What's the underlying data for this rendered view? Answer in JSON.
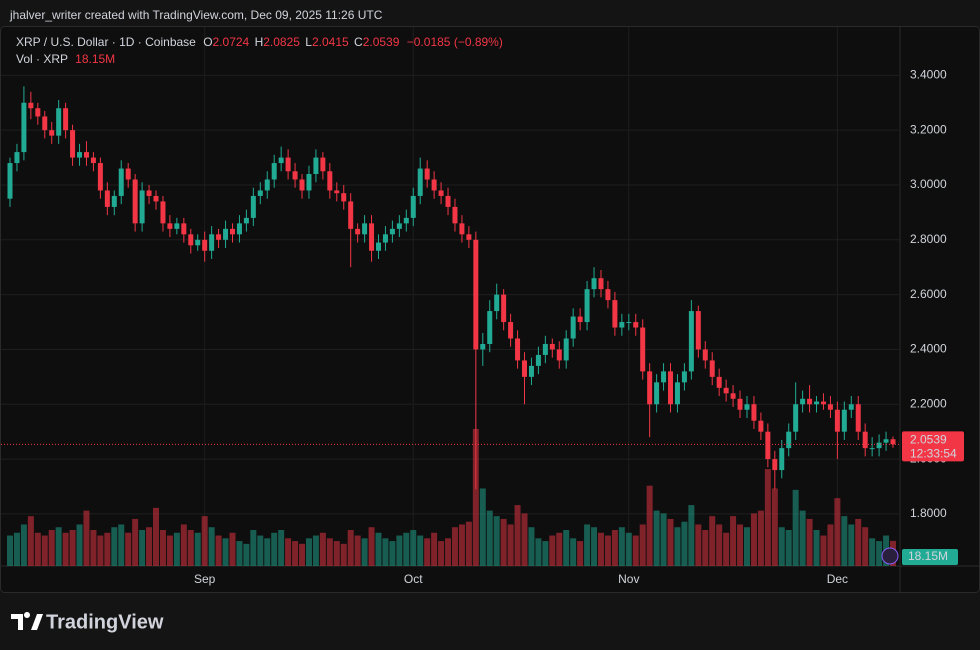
{
  "attribution": "jhalver_writer created with TradingView.com, Dec 09, 2025 11:26 UTC",
  "brand": "TradingView",
  "chart_data": {
    "type": "candlestick",
    "title": "XRP / U.S. Dollar · 1D · Coinbase",
    "ohlc_letters": [
      "O",
      "H",
      "L",
      "C"
    ],
    "change": "−0.0185",
    "change_percent": "(−0.89%)",
    "countdown": "12:33:54",
    "up_color": "#22ab94",
    "down_color": "#f23645",
    "grid": true,
    "ylim": [
      1.61,
      3.58
    ],
    "yticks": [
      {
        "value": 1.8,
        "label": "1.8000"
      },
      {
        "value": 2.0,
        "label": "2.0000"
      },
      {
        "value": 2.2,
        "label": "2.2000"
      },
      {
        "value": 2.4,
        "label": "2.4000"
      },
      {
        "value": 2.6,
        "label": "2.6000"
      },
      {
        "value": 2.8,
        "label": "2.8000"
      },
      {
        "value": 3.0,
        "label": "3.0000"
      },
      {
        "value": 3.2,
        "label": "3.2000"
      },
      {
        "value": 3.4,
        "label": "3.4000"
      }
    ],
    "categories": [
      null,
      null,
      null,
      null,
      null,
      null,
      null,
      null,
      null,
      null,
      null,
      null,
      null,
      null,
      null,
      null,
      null,
      null,
      null,
      null,
      null,
      null,
      null,
      null,
      null,
      null,
      null,
      null,
      "Sep",
      null,
      null,
      null,
      null,
      null,
      null,
      null,
      null,
      null,
      null,
      null,
      null,
      null,
      null,
      null,
      null,
      null,
      null,
      null,
      null,
      null,
      null,
      null,
      null,
      null,
      null,
      null,
      null,
      null,
      "Oct",
      null,
      null,
      null,
      null,
      null,
      null,
      null,
      null,
      null,
      null,
      null,
      null,
      null,
      null,
      null,
      null,
      null,
      null,
      null,
      null,
      null,
      null,
      null,
      null,
      null,
      null,
      null,
      null,
      null,
      null,
      "Nov",
      null,
      null,
      null,
      null,
      null,
      null,
      null,
      null,
      null,
      null,
      null,
      null,
      null,
      null,
      null,
      null,
      null,
      null,
      null,
      null,
      null,
      null,
      null,
      null,
      null,
      null,
      null,
      null,
      null,
      "Dec",
      null,
      null,
      null,
      null,
      null,
      null,
      null,
      null
    ],
    "open": [
      2.95,
      3.08,
      3.12,
      3.3,
      3.28,
      3.25,
      3.2,
      3.18,
      3.28,
      3.2,
      3.1,
      3.12,
      3.1,
      3.08,
      2.98,
      2.92,
      2.96,
      3.06,
      3.02,
      2.86,
      2.98,
      2.96,
      2.94,
      2.86,
      2.84,
      2.86,
      2.82,
      2.78,
      2.8,
      2.76,
      2.82,
      2.8,
      2.84,
      2.82,
      2.86,
      2.88,
      2.96,
      2.98,
      3.02,
      3.08,
      3.1,
      3.05,
      3.02,
      2.98,
      3.04,
      3.1,
      3.05,
      2.98,
      2.97,
      2.94,
      2.84,
      2.82,
      2.86,
      2.76,
      2.79,
      2.82,
      2.84,
      2.86,
      2.88,
      2.96,
      3.06,
      3.02,
      2.98,
      2.96,
      2.92,
      2.86,
      2.82,
      2.8,
      2.4,
      2.42,
      2.54,
      2.6,
      2.5,
      2.44,
      2.36,
      2.3,
      2.34,
      2.38,
      2.42,
      2.4,
      2.36,
      2.44,
      2.52,
      2.5,
      2.62,
      2.66,
      2.62,
      2.58,
      2.48,
      2.5,
      2.5,
      2.48,
      2.32,
      2.2,
      2.28,
      2.32,
      2.2,
      2.28,
      2.32,
      2.54,
      2.4,
      2.36,
      2.3,
      2.26,
      2.24,
      2.22,
      2.18,
      2.2,
      2.14,
      2.1,
      2.0,
      1.96,
      2.04,
      2.1,
      2.2,
      2.22,
      2.2,
      2.21,
      2.2,
      2.18,
      2.1,
      2.18,
      2.2,
      2.1,
      2.04,
      2.04,
      2.06,
      2.0724
    ],
    "high": [
      3.1,
      3.15,
      3.36,
      3.34,
      3.3,
      3.27,
      3.23,
      3.31,
      3.3,
      3.22,
      3.15,
      3.16,
      3.12,
      3.1,
      3.01,
      2.98,
      3.09,
      3.08,
      3.04,
      3.01,
      3.0,
      2.98,
      2.96,
      2.89,
      2.88,
      2.88,
      2.84,
      2.82,
      2.83,
      2.85,
      2.84,
      2.87,
      2.86,
      2.89,
      2.91,
      2.99,
      3.01,
      3.05,
      3.11,
      3.14,
      3.13,
      3.08,
      3.04,
      3.07,
      3.13,
      3.12,
      3.08,
      3.01,
      3.0,
      2.97,
      2.86,
      2.89,
      2.89,
      2.82,
      2.85,
      2.87,
      2.89,
      2.91,
      2.99,
      3.1,
      3.09,
      3.05,
      3.01,
      2.99,
      2.95,
      2.89,
      2.85,
      2.83,
      2.46,
      2.58,
      2.64,
      2.62,
      2.53,
      2.47,
      2.39,
      2.37,
      2.41,
      2.45,
      2.44,
      2.43,
      2.47,
      2.55,
      2.55,
      2.65,
      2.7,
      2.69,
      2.65,
      2.61,
      2.53,
      2.53,
      2.53,
      2.51,
      2.35,
      2.31,
      2.35,
      2.35,
      2.31,
      2.35,
      2.58,
      2.56,
      2.43,
      2.39,
      2.33,
      2.29,
      2.27,
      2.25,
      2.23,
      2.23,
      2.17,
      2.13,
      2.03,
      2.07,
      2.13,
      2.28,
      2.25,
      2.27,
      2.23,
      2.24,
      2.23,
      2.21,
      2.21,
      2.23,
      2.23,
      2.13,
      2.08,
      2.09,
      2.1,
      2.0825
    ],
    "low": [
      2.92,
      3.05,
      3.09,
      3.24,
      3.22,
      3.17,
      3.15,
      3.15,
      3.17,
      3.07,
      3.07,
      3.07,
      3.05,
      2.95,
      2.89,
      2.89,
      2.93,
      2.99,
      2.83,
      2.83,
      2.93,
      2.91,
      2.83,
      2.81,
      2.82,
      2.79,
      2.75,
      2.76,
      2.72,
      2.73,
      2.77,
      2.77,
      2.79,
      2.79,
      2.83,
      2.85,
      2.93,
      2.95,
      2.99,
      3.05,
      3.02,
      2.99,
      2.95,
      2.95,
      3.01,
      3.02,
      2.95,
      2.94,
      2.91,
      2.7,
      2.79,
      2.79,
      2.72,
      2.73,
      2.76,
      2.79,
      2.81,
      2.83,
      2.85,
      2.93,
      2.99,
      2.95,
      2.93,
      2.89,
      2.83,
      2.79,
      2.77,
      1.89,
      2.34,
      2.39,
      2.51,
      2.47,
      2.41,
      2.33,
      2.2,
      2.27,
      2.31,
      2.35,
      2.37,
      2.33,
      2.33,
      2.41,
      2.47,
      2.47,
      2.59,
      2.59,
      2.55,
      2.45,
      2.45,
      2.47,
      2.45,
      2.29,
      2.08,
      2.17,
      2.25,
      2.17,
      2.17,
      2.25,
      2.29,
      2.37,
      2.33,
      2.27,
      2.23,
      2.21,
      2.19,
      2.15,
      2.15,
      2.11,
      2.07,
      1.97,
      1.89,
      1.93,
      2.01,
      2.07,
      2.17,
      2.17,
      2.17,
      2.18,
      2.15,
      2.0,
      2.07,
      2.15,
      2.07,
      2.01,
      2.01,
      2.01,
      2.03,
      2.0415
    ],
    "close": [
      3.08,
      3.12,
      3.3,
      3.28,
      3.25,
      3.2,
      3.18,
      3.28,
      3.2,
      3.1,
      3.12,
      3.1,
      3.08,
      2.98,
      2.92,
      2.96,
      3.06,
      3.02,
      2.86,
      2.98,
      2.96,
      2.94,
      2.86,
      2.84,
      2.86,
      2.82,
      2.78,
      2.8,
      2.76,
      2.82,
      2.8,
      2.84,
      2.82,
      2.86,
      2.88,
      2.96,
      2.98,
      3.02,
      3.08,
      3.1,
      3.05,
      3.02,
      2.98,
      3.04,
      3.1,
      3.05,
      2.98,
      2.97,
      2.94,
      2.84,
      2.82,
      2.86,
      2.76,
      2.79,
      2.82,
      2.84,
      2.86,
      2.88,
      2.96,
      3.06,
      3.02,
      2.98,
      2.96,
      2.92,
      2.86,
      2.82,
      2.8,
      2.4,
      2.42,
      2.54,
      2.6,
      2.5,
      2.44,
      2.36,
      2.3,
      2.34,
      2.38,
      2.42,
      2.4,
      2.36,
      2.44,
      2.52,
      2.5,
      2.62,
      2.66,
      2.62,
      2.58,
      2.48,
      2.5,
      2.5,
      2.48,
      2.32,
      2.2,
      2.28,
      2.32,
      2.2,
      2.28,
      2.32,
      2.54,
      2.4,
      2.36,
      2.3,
      2.26,
      2.24,
      2.22,
      2.18,
      2.2,
      2.14,
      2.1,
      2.0,
      1.96,
      2.04,
      2.1,
      2.2,
      2.22,
      2.2,
      2.21,
      2.2,
      2.18,
      2.1,
      2.18,
      2.2,
      2.1,
      2.04,
      2.04,
      2.06,
      2.0724,
      2.0539
    ],
    "volume": {
      "name": "Vol · XRP",
      "ylim": [
        0,
        390
      ],
      "last_value_label": "18.15M",
      "values": [
        22,
        24,
        30,
        36,
        24,
        22,
        26,
        28,
        24,
        26,
        30,
        40,
        26,
        22,
        24,
        28,
        30,
        24,
        34,
        26,
        28,
        42,
        26,
        22,
        24,
        30,
        26,
        24,
        36,
        28,
        22,
        20,
        24,
        18,
        16,
        26,
        22,
        20,
        24,
        26,
        20,
        18,
        16,
        20,
        22,
        24,
        20,
        18,
        16,
        26,
        22,
        20,
        28,
        24,
        20,
        18,
        22,
        24,
        26,
        22,
        20,
        24,
        18,
        20,
        28,
        30,
        32,
        99,
        56,
        40,
        36,
        34,
        30,
        44,
        38,
        28,
        20,
        18,
        22,
        24,
        26,
        20,
        18,
        30,
        28,
        24,
        22,
        26,
        28,
        24,
        22,
        30,
        58,
        40,
        38,
        34,
        28,
        32,
        44,
        30,
        26,
        36,
        30,
        24,
        36,
        30,
        28,
        38,
        40,
        70,
        56,
        28,
        26,
        55,
        40,
        34,
        26,
        22,
        30,
        49,
        36,
        30,
        34,
        28,
        20,
        18,
        22,
        18.15
      ]
    }
  }
}
